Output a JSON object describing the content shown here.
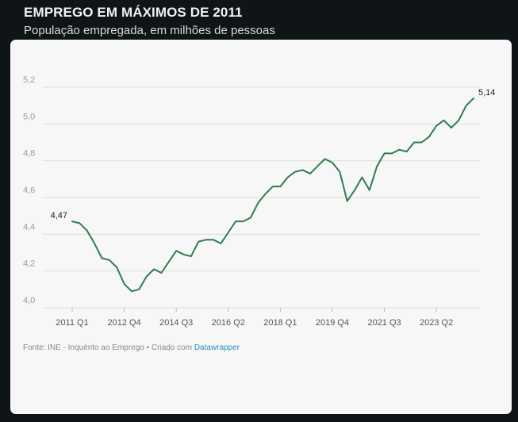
{
  "header": {
    "title": "EMPREGO EM MÁXIMOS DE 2011",
    "subtitle": "População empregada, em milhões de pessoas"
  },
  "footer": {
    "source_text": "Fonte: INE - Inquérito ao Emprego • Criado com ",
    "link_text": "Datawrapper"
  },
  "colors": {
    "line": "#2e7d4f",
    "grid": "#dedede",
    "tick_text": "#9a9a9a",
    "label_text": "#222222"
  },
  "chart_data": {
    "type": "line",
    "title": "EMPREGO EM MÁXIMOS DE 2011",
    "subtitle": "População empregada, em milhões de pessoas",
    "xlabel": "",
    "ylabel": "",
    "ylim": [
      4.0,
      5.2
    ],
    "yticks": [
      "4,0",
      "4,2",
      "4,4",
      "4,6",
      "4,8",
      "5,0",
      "5,2"
    ],
    "ytick_values": [
      4.0,
      4.2,
      4.4,
      4.6,
      4.8,
      5.0,
      5.2
    ],
    "xticks": [
      "2011 Q1",
      "2012 Q4",
      "2014 Q3",
      "2016 Q2",
      "2018 Q1",
      "2019 Q4",
      "2021 Q3",
      "2023 Q2"
    ],
    "grid": true,
    "legend": "none",
    "series": [
      {
        "values": [
          4.47,
          4.46,
          4.42,
          4.35,
          4.27,
          4.26,
          4.22,
          4.13,
          4.09,
          4.1,
          4.17,
          4.21,
          4.19,
          4.25,
          4.31,
          4.29,
          4.28,
          4.36,
          4.37,
          4.37,
          4.35,
          4.41,
          4.47,
          4.47,
          4.49,
          4.57,
          4.62,
          4.66,
          4.66,
          4.71,
          4.74,
          4.75,
          4.73,
          4.77,
          4.81,
          4.79,
          4.74,
          4.58,
          4.64,
          4.71,
          4.64,
          4.77,
          4.84,
          4.84,
          4.86,
          4.85,
          4.9,
          4.9,
          4.93,
          4.99,
          5.02,
          4.98,
          5.02,
          5.1,
          5.14
        ]
      }
    ],
    "annotations": [
      {
        "index": 0,
        "label": "4,47"
      },
      {
        "index": 54,
        "label": "5,14"
      }
    ]
  }
}
